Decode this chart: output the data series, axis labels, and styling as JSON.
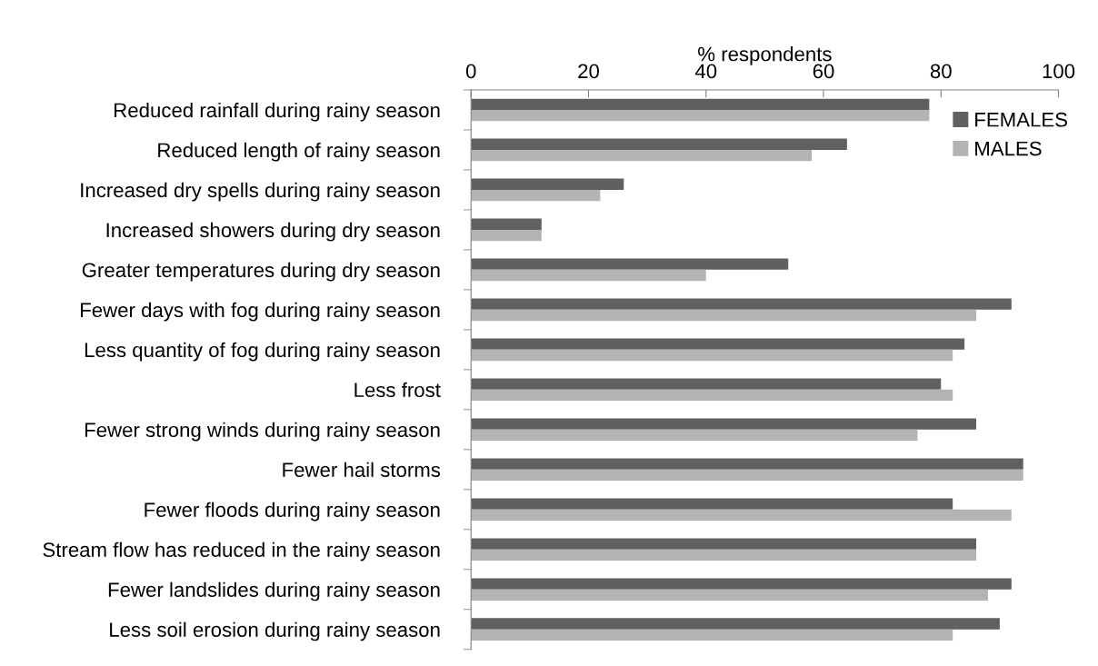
{
  "chart_data": {
    "type": "bar",
    "orientation": "horizontal",
    "xlabel": "% respondents",
    "categories": [
      "Reduced rainfall during rainy season",
      "Reduced length of rainy season",
      "Increased dry spells during rainy season",
      "Increased showers during dry season",
      "Greater temperatures during dry season",
      "Fewer days with fog during rainy season",
      "Less quantity of fog during rainy season",
      "Less frost",
      "Fewer strong winds during rainy season",
      "Fewer hail storms",
      "Fewer floods during rainy season",
      "Stream flow has reduced in the rainy season",
      "Fewer landslides during rainy season",
      "Less soil erosion during rainy season"
    ],
    "series": [
      {
        "name": "FEMALES",
        "color": "#606060",
        "values": [
          78,
          64,
          26,
          12,
          54,
          92,
          84,
          80,
          86,
          94,
          82,
          86,
          92,
          90
        ]
      },
      {
        "name": "MALES",
        "color": "#b3b3b3",
        "values": [
          78,
          58,
          22,
          12,
          40,
          86,
          82,
          82,
          76,
          94,
          92,
          86,
          88,
          82
        ]
      }
    ],
    "xlim": [
      0,
      100
    ],
    "xticks": [
      0,
      20,
      40,
      60,
      80,
      100
    ],
    "grid": false,
    "legend": "top right"
  }
}
